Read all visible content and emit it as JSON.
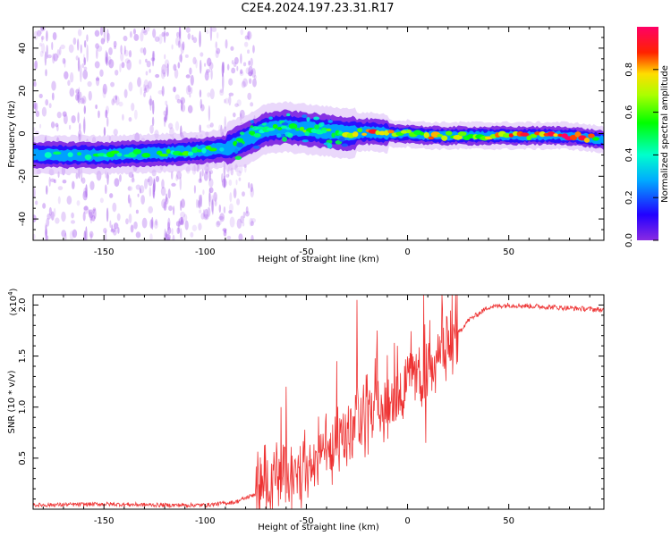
{
  "title": "C2E4.2024.197.23.31.R17",
  "chart_data": [
    {
      "type": "heatmap",
      "xlabel": "Height of straight line (km)",
      "ylabel": "Frequency (Hz)",
      "xlim": [
        -185,
        97
      ],
      "ylim": [
        -50,
        50
      ],
      "xticks": [
        -150,
        -100,
        -50,
        0,
        50
      ],
      "xtick_labels": [
        "-150",
        "-100",
        "-50",
        "0",
        "50"
      ],
      "yticks": [
        -40,
        -20,
        0,
        20,
        40
      ],
      "ytick_labels": [
        "-40",
        "-20",
        "0",
        "20",
        "40"
      ],
      "colorbar": {
        "label": "Normalized spectral amplitude",
        "range": [
          0,
          1
        ],
        "ticks": [
          0.0,
          0.2,
          0.4,
          0.6,
          0.8
        ],
        "tick_labels": [
          "0.0",
          "0.2",
          "0.4",
          "0.6",
          "0.8"
        ],
        "colormap": "rainbow (violet-blue-cyan-green-yellow-red-magenta)"
      },
      "ridge": {
        "description": "dominant frequency band vs height",
        "x": [
          -185,
          -150,
          -120,
          -100,
          -90,
          -80,
          -70,
          -60,
          -50,
          -40,
          -30,
          -20,
          -10,
          0,
          10,
          20,
          40,
          60,
          80,
          97
        ],
        "y": [
          -10,
          -10,
          -9,
          -8,
          -7,
          -3,
          2,
          3,
          2,
          1,
          0,
          1,
          0,
          0,
          -1,
          -1,
          -1,
          -1,
          -1,
          -3
        ],
        "amplitude": [
          0.25,
          0.35,
          0.4,
          0.4,
          0.35,
          0.4,
          0.45,
          0.5,
          0.5,
          0.45,
          0.55,
          0.75,
          0.85,
          0.6,
          0.7,
          0.65,
          0.65,
          0.75,
          0.85,
          0.6
        ]
      },
      "grid": false
    },
    {
      "type": "line",
      "xlabel": "Height of straight line (km)",
      "ylabel": "SNR (10 * v/v)",
      "y_multiplier": "(x10",
      "y_multiplier_exp": "4",
      "y_multiplier_close": ")",
      "xlim": [
        -185,
        97
      ],
      "ylim": [
        0,
        2.1
      ],
      "xticks": [
        -150,
        -100,
        -50,
        0,
        50
      ],
      "xtick_labels": [
        "-150",
        "-100",
        "-50",
        "0",
        "50"
      ],
      "yticks": [
        0.5,
        1.0,
        1.5,
        2.0
      ],
      "ytick_labels": [
        "0.5",
        "1.0",
        "1.5",
        "2.0"
      ],
      "line_color": "#ee3333",
      "envelope": {
        "description": "baseline trend of SNR (x10^4) vs height; noisy spikes on top",
        "x": [
          -185,
          -150,
          -120,
          -100,
          -85,
          -75,
          -70,
          -60,
          -50,
          -40,
          -30,
          -20,
          -10,
          0,
          10,
          20,
          30,
          40,
          50,
          70,
          90,
          97
        ],
        "y": [
          0.04,
          0.05,
          0.04,
          0.04,
          0.07,
          0.15,
          0.25,
          0.35,
          0.45,
          0.55,
          0.7,
          0.9,
          1.1,
          1.2,
          1.4,
          1.6,
          1.85,
          1.98,
          2.0,
          1.98,
          1.96,
          1.95
        ]
      },
      "spikes": [
        {
          "x": -60,
          "y": 1.2
        },
        {
          "x": -35,
          "y": 1.45
        },
        {
          "x": -25,
          "y": 2.05
        },
        {
          "x": -15,
          "y": 1.75
        },
        {
          "x": -5,
          "y": 1.6
        },
        {
          "x": 8,
          "y": 2.1
        },
        {
          "x": 9,
          "y": 0.65
        }
      ],
      "grid": false
    }
  ]
}
